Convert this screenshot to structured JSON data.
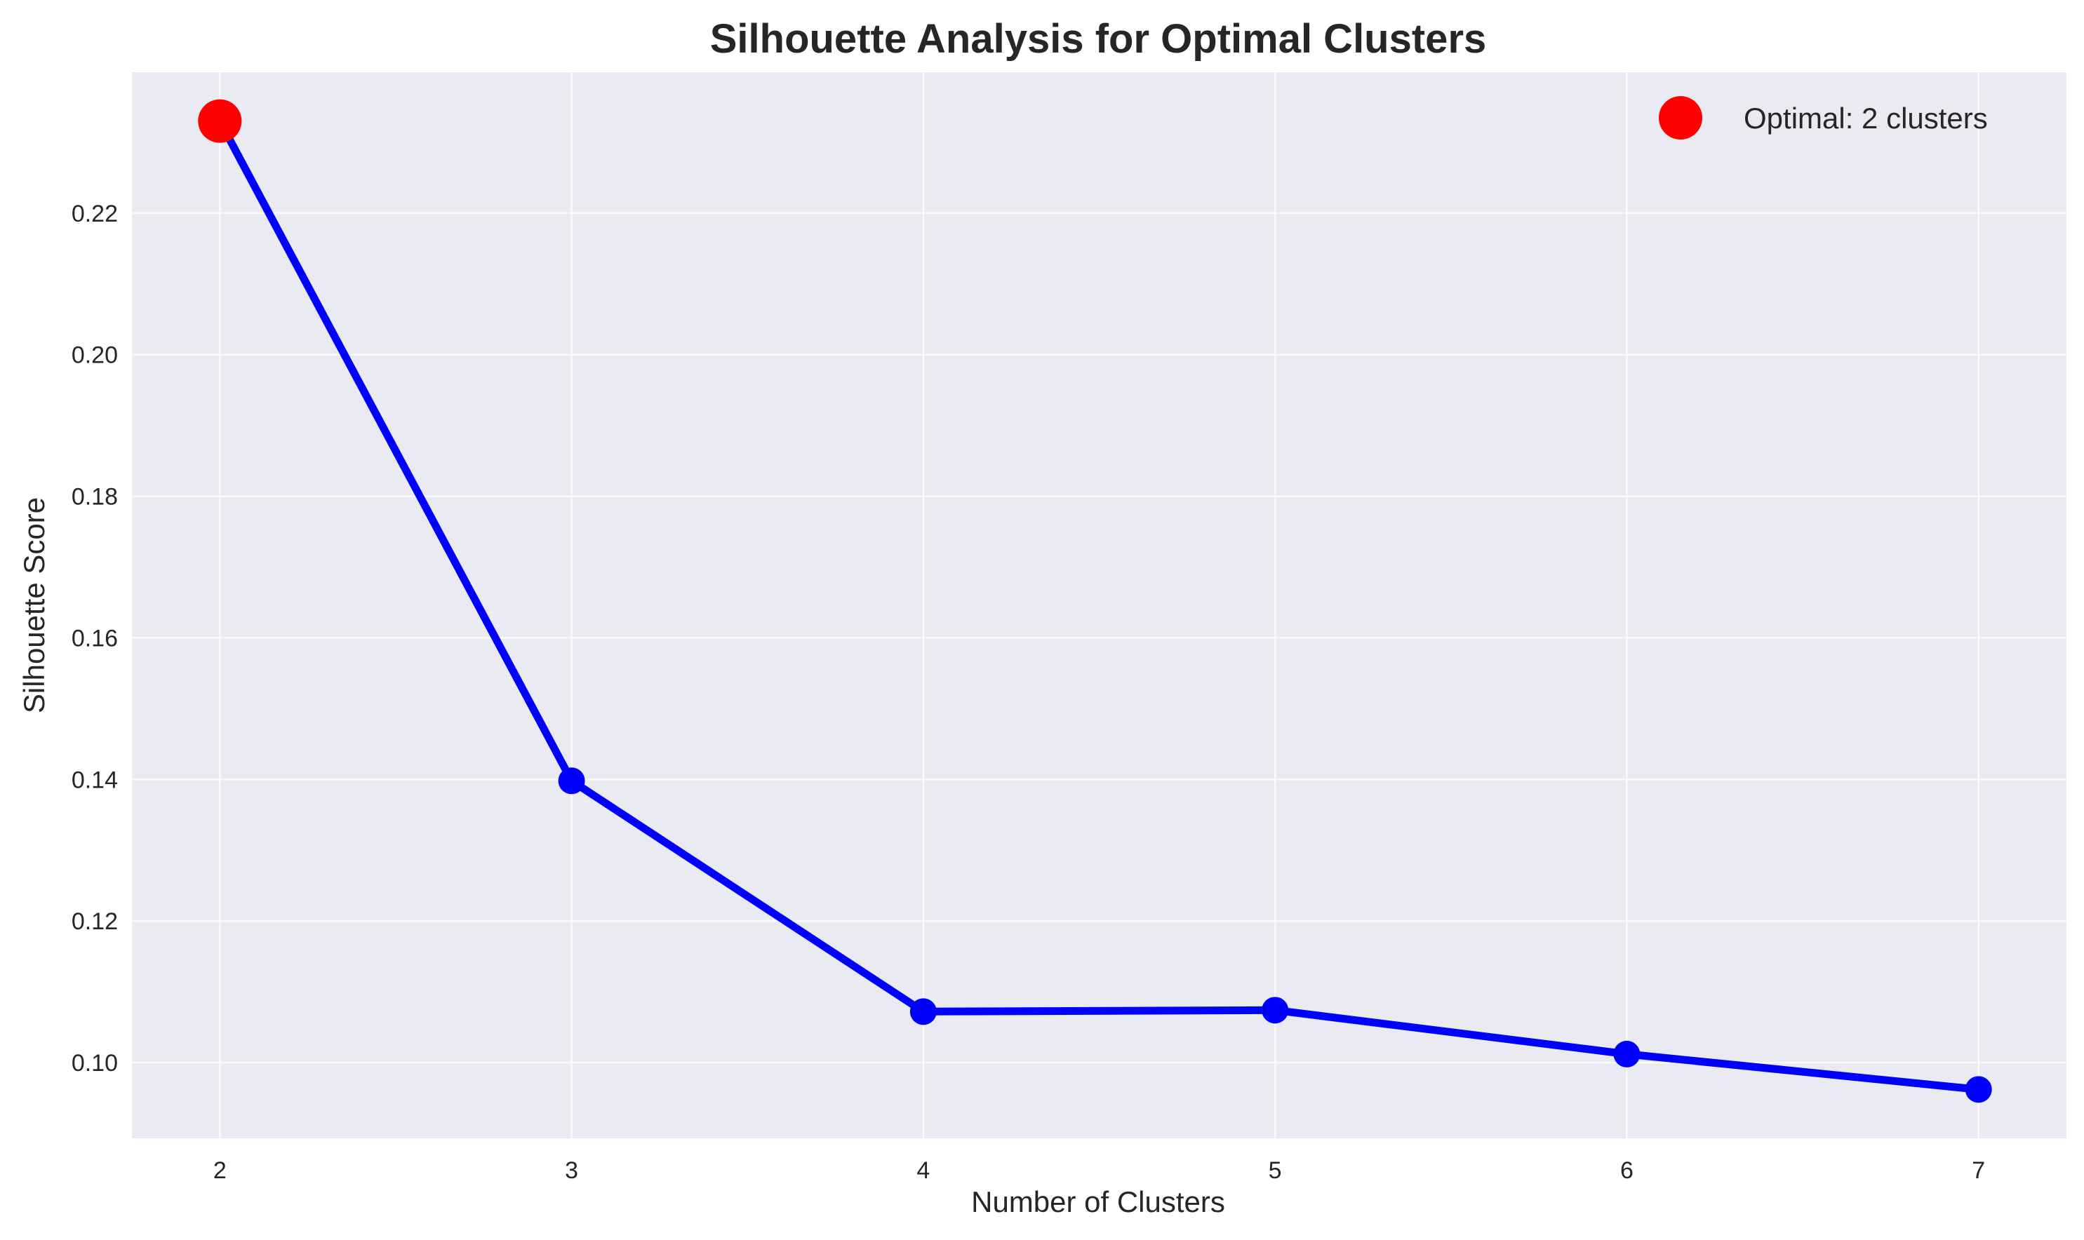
{
  "chart_data": {
    "type": "line",
    "title": "Silhouette Analysis for Optimal Clusters",
    "xlabel": "Number of Clusters",
    "ylabel": "Silhouette Score",
    "x": [
      2,
      3,
      4,
      5,
      6,
      7
    ],
    "series": [
      {
        "values": [
          0.233,
          0.1398,
          0.1072,
          0.1074,
          0.1012,
          0.0962
        ],
        "color": "#0000ff",
        "marker": "circle"
      }
    ],
    "highlight": {
      "label": "Optimal: 2 clusters",
      "x": 2,
      "y": 0.233,
      "color": "#ff0000"
    },
    "xticks": [
      "2",
      "3",
      "4",
      "5",
      "6",
      "7"
    ],
    "yticks": [
      "0.10",
      "0.12",
      "0.14",
      "0.16",
      "0.18",
      "0.20",
      "0.22"
    ],
    "xlim": [
      1.75,
      7.25
    ],
    "ylim": [
      0.0893,
      0.2399
    ],
    "grid": true,
    "legend_position": "top-right",
    "background_color": "#eaeaf2"
  }
}
